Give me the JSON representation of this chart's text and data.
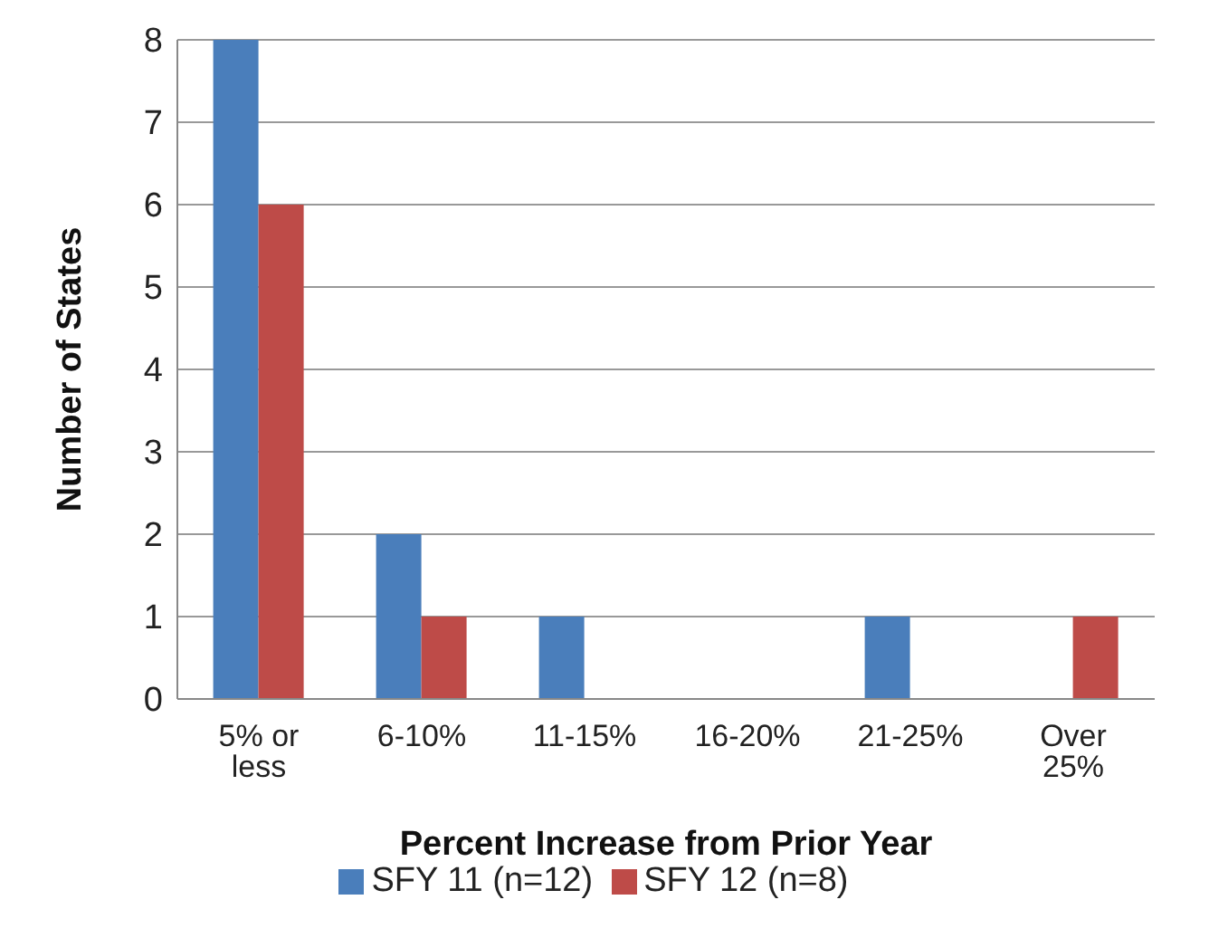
{
  "chart_data": {
    "type": "bar",
    "xlabel": "Percent Increase from Prior Year",
    "ylabel": "Number of States",
    "categories": [
      "5% or less",
      "6-10%",
      "11-15%",
      "16-20%",
      "21-25%",
      "Over 25%"
    ],
    "series": [
      {
        "name": "SFY 11 (n=12)",
        "color": "#4a7ebb",
        "values": [
          8,
          2,
          1,
          0,
          1,
          0
        ]
      },
      {
        "name": "SFY 12 (n=8)",
        "color": "#be4b48",
        "values": [
          6,
          1,
          0,
          0,
          0,
          1
        ]
      }
    ],
    "ylim": [
      0,
      8
    ],
    "yticks": [
      0,
      1,
      2,
      3,
      4,
      5,
      6,
      7,
      8
    ],
    "grid": "y",
    "legend": "bottom"
  }
}
